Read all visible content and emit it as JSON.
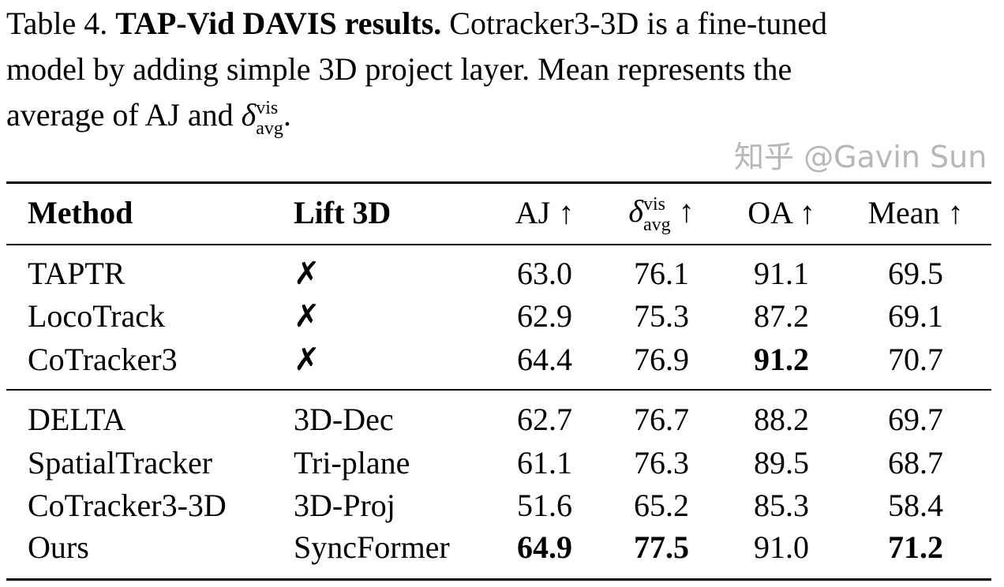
{
  "caption": {
    "label": "Table 4.",
    "title": "TAP-Vid DAVIS results.",
    "line1_rest": "Cotracker3-3D is a fine-tuned",
    "line2": "model by adding simple 3D project layer.  Mean represents the",
    "line3_pre": "average of AJ and ",
    "delta": "δ",
    "delta_sup": "vis",
    "delta_sub": "avg",
    "line3_post": "."
  },
  "table": {
    "headers": {
      "method": "Method",
      "lift": "Lift 3D",
      "aj": "AJ ↑",
      "delta": "δ",
      "delta_sup": "vis",
      "delta_sub": "avg",
      "delta_arrow": " ↑",
      "oa": "OA ↑",
      "mean": "Mean ↑"
    },
    "groups": [
      [
        {
          "method": "TAPTR",
          "lift": "✗",
          "aj": "63.0",
          "delta": "76.1",
          "oa": "91.1",
          "mean": "69.5",
          "bold": []
        },
        {
          "method": "LocoTrack",
          "lift": "✗",
          "aj": "62.9",
          "delta": "75.3",
          "oa": "87.2",
          "mean": "69.1",
          "bold": []
        },
        {
          "method": "CoTracker3",
          "lift": "✗",
          "aj": "64.4",
          "delta": "76.9",
          "oa": "91.2",
          "mean": "70.7",
          "bold": [
            "oa"
          ]
        }
      ],
      [
        {
          "method": "DELTA",
          "lift": "3D-Dec",
          "aj": "62.7",
          "delta": "76.7",
          "oa": "88.2",
          "mean": "69.7",
          "bold": []
        },
        {
          "method": "SpatialTracker",
          "lift": "Tri-plane",
          "aj": "61.1",
          "delta": "76.3",
          "oa": "89.5",
          "mean": "68.7",
          "bold": []
        },
        {
          "method": "CoTracker3-3D",
          "lift": "3D-Proj",
          "aj": "51.6",
          "delta": "65.2",
          "oa": "85.3",
          "mean": "58.4",
          "bold": []
        },
        {
          "method": "Ours",
          "lift": "SyncFormer",
          "aj": "64.9",
          "delta": "77.5",
          "oa": "91.0",
          "mean": "71.2",
          "bold": [
            "aj",
            "delta",
            "mean"
          ]
        }
      ]
    ]
  },
  "watermark": "知乎 @Gavin Sun"
}
